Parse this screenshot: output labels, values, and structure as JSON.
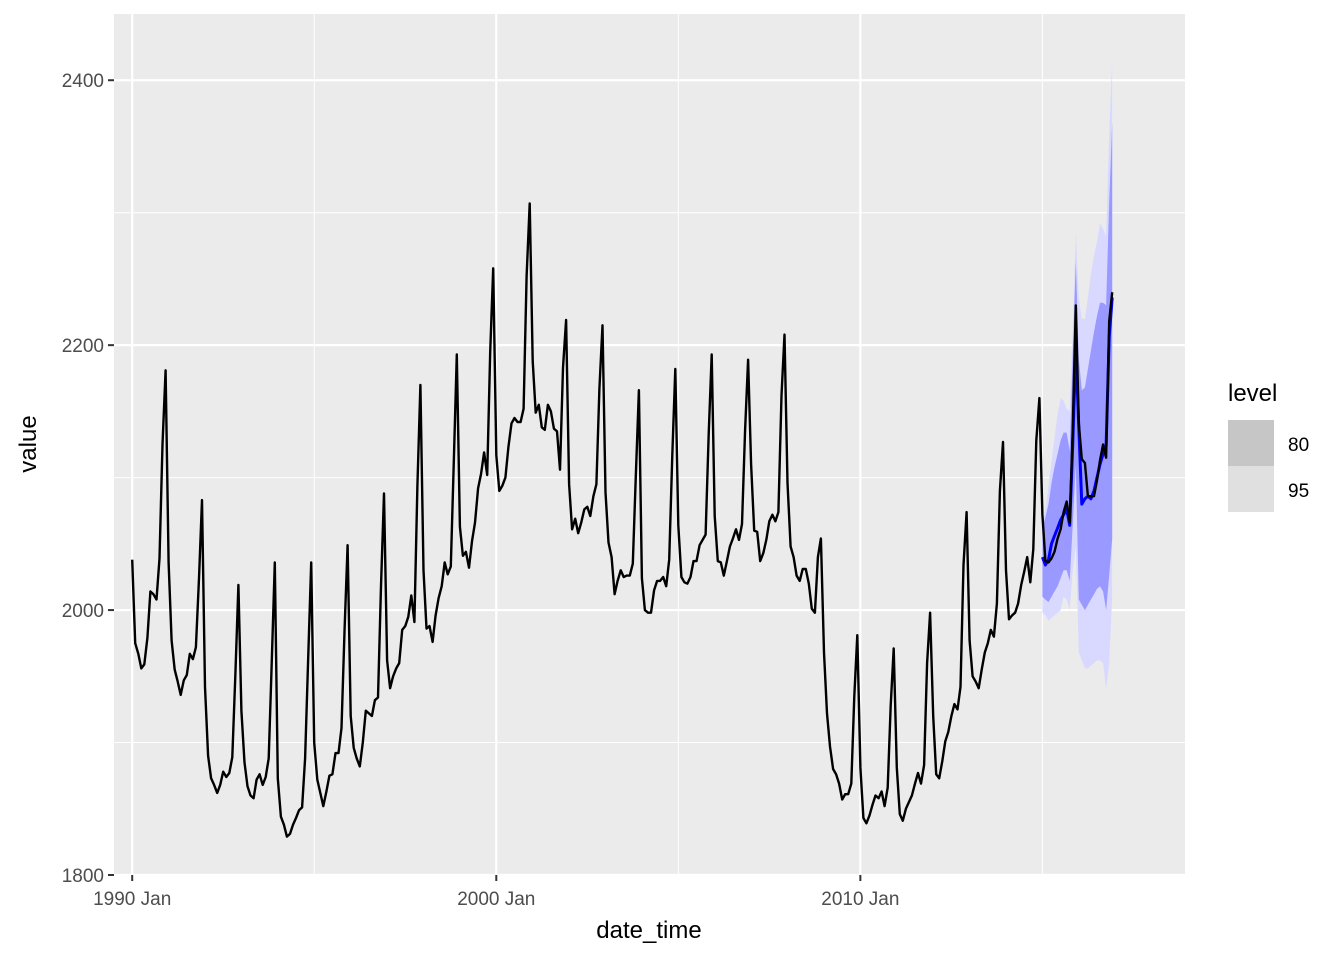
{
  "chart_data": {
    "type": "line",
    "xlabel": "date_time",
    "ylabel": "value",
    "x_ticks": [
      "1990 Jan",
      "2000 Jan",
      "2010 Jan"
    ],
    "y_ticks": [
      "1800",
      "2000",
      "2200",
      "2400"
    ],
    "xlim": [
      "1989-07",
      "2018-12"
    ],
    "ylim": [
      1800,
      2450
    ],
    "grid": true,
    "legend": {
      "title": "level",
      "position": "right",
      "entries": [
        {
          "label": "80",
          "color": "#c6c6c6"
        },
        {
          "label": "95",
          "color": "#e0e0e0"
        }
      ]
    },
    "series": [
      {
        "type": "line",
        "color": "#000000",
        "x_start": "1990-01",
        "frequency": "monthly",
        "values": [
          2038,
          1975,
          1967,
          1956,
          1959,
          1979,
          2014,
          2012,
          2008,
          2039,
          2125,
          2181,
          2036,
          1977,
          1955,
          1946,
          1936,
          1947,
          1951,
          1967,
          1963,
          1972,
          2024,
          2083,
          1942,
          1890,
          1873,
          1868,
          1862,
          1868,
          1878,
          1874,
          1877,
          1889,
          1952,
          2019,
          1924,
          1885,
          1867,
          1860,
          1858,
          1872,
          1876,
          1868,
          1874,
          1888,
          1962,
          2036,
          1873,
          1844,
          1838,
          1829,
          1831,
          1838,
          1843,
          1849,
          1851,
          1888,
          1964,
          2036,
          1900,
          1872,
          1862,
          1852,
          1863,
          1875,
          1876,
          1892,
          1892,
          1911,
          1986,
          2049,
          1920,
          1896,
          1888,
          1882,
          1900,
          1924,
          1922,
          1920,
          1932,
          1934,
          2018,
          2088,
          1962,
          1941,
          1950,
          1956,
          1960,
          1985,
          1988,
          1995,
          2011,
          1991,
          2094,
          2170,
          2030,
          1986,
          1988,
          1976,
          1996,
          2009,
          2018,
          2036,
          2027,
          2033,
          2112,
          2193,
          2063,
          2041,
          2044,
          2032,
          2052,
          2066,
          2092,
          2103,
          2119,
          2102,
          2195,
          2258,
          2117,
          2090,
          2094,
          2100,
          2123,
          2141,
          2145,
          2142,
          2142,
          2152,
          2252,
          2307,
          2188,
          2149,
          2155,
          2138,
          2136,
          2155,
          2150,
          2137,
          2135,
          2106,
          2183,
          2219,
          2095,
          2061,
          2069,
          2058,
          2066,
          2076,
          2078,
          2071,
          2086,
          2095,
          2167,
          2215,
          2089,
          2051,
          2040,
          2012,
          2022,
          2030,
          2025,
          2026,
          2026,
          2035,
          2101,
          2166,
          2024,
          2000,
          1998,
          1998,
          2015,
          2022,
          2022,
          2025,
          2018,
          2038,
          2117,
          2182,
          2064,
          2025,
          2021,
          2020,
          2025,
          2037,
          2037,
          2049,
          2053,
          2057,
          2133,
          2193,
          2071,
          2037,
          2036,
          2026,
          2037,
          2048,
          2054,
          2061,
          2053,
          2065,
          2136,
          2189,
          2110,
          2060,
          2059,
          2037,
          2043,
          2053,
          2067,
          2072,
          2067,
          2074,
          2162,
          2208,
          2096,
          2048,
          2040,
          2026,
          2022,
          2031,
          2031,
          2020,
          2001,
          1998,
          2040,
          2054,
          1968,
          1922,
          1897,
          1880,
          1876,
          1869,
          1857,
          1861,
          1861,
          1869,
          1935,
          1981,
          1881,
          1843,
          1839,
          1845,
          1853,
          1860,
          1858,
          1863,
          1852,
          1866,
          1928,
          1971,
          1881,
          1846,
          1841,
          1850,
          1855,
          1860,
          1869,
          1877,
          1869,
          1883,
          1960,
          1998,
          1920,
          1876,
          1873,
          1886,
          1901,
          1908,
          1920,
          1929,
          1925,
          1942,
          2034,
          2074,
          1977,
          1950,
          1946,
          1941,
          1955,
          1968,
          1975,
          1985,
          1980,
          2005,
          2090,
          2127,
          2030,
          1993,
          1996,
          1998,
          2005,
          2019,
          2029,
          2040,
          2021,
          2046,
          2128,
          2160,
          2072,
          2037,
          2036,
          2039,
          2044,
          2054,
          2061,
          2074,
          2082,
          2066,
          2136,
          2230,
          2141,
          2114,
          2111,
          2086,
          2086,
          2086,
          2098,
          2113,
          2125,
          2115,
          2218,
          2240
        ]
      },
      {
        "type": "forecast_line",
        "color": "#0000ff",
        "x_start": "2015-01",
        "frequency": "monthly",
        "values": [
          2040,
          2034,
          2038,
          2050,
          2056,
          2062,
          2068,
          2072,
          2076,
          2064,
          2124,
          2197,
          2138,
          2080,
          2084,
          2086,
          2084,
          2090,
          2100,
          2110,
          2118,
          2124,
          2206,
          2236
        ]
      },
      {
        "type": "ribbon",
        "level": "95",
        "color": "#d9d9ff",
        "x_start": "2015-01",
        "frequency": "monthly",
        "lower": [
          1998,
          1996,
          1992,
          1994,
          1996,
          1998,
          2000,
          2010,
          2008,
          2000,
          2030,
          2048,
          1968,
          1962,
          1956,
          1956,
          1958,
          1960,
          1962,
          1962,
          1960,
          1940,
          1960,
          2010
        ],
        "upper": [
          2066,
          2076,
          2094,
          2112,
          2130,
          2148,
          2160,
          2158,
          2152,
          2150,
          2210,
          2285,
          2236,
          2220,
          2220,
          2236,
          2254,
          2268,
          2278,
          2292,
          2288,
          2282,
          2360,
          2415
        ]
      },
      {
        "type": "ribbon",
        "level": "80",
        "color": "#9999ff",
        "x_start": "2015-01",
        "frequency": "monthly",
        "lower": [
          2010,
          2008,
          2006,
          2010,
          2014,
          2018,
          2024,
          2030,
          2030,
          2022,
          2064,
          2110,
          2008,
          2004,
          2000,
          2004,
          2008,
          2012,
          2016,
          2018,
          2014,
          2000,
          2026,
          2054
        ],
        "upper": [
          2062,
          2070,
          2080,
          2096,
          2108,
          2118,
          2128,
          2134,
          2134,
          2120,
          2192,
          2264,
          2190,
          2166,
          2168,
          2182,
          2196,
          2210,
          2222,
          2232,
          2232,
          2230,
          2308,
          2368
        ]
      }
    ]
  }
}
